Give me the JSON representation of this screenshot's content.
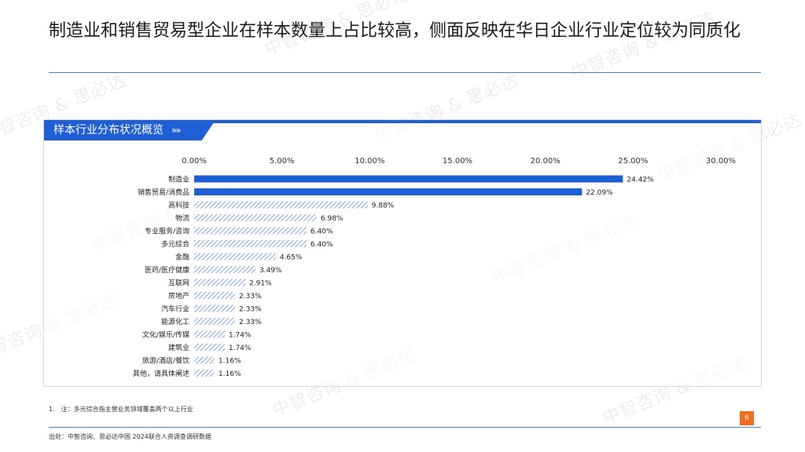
{
  "title": "制造业和销售贸易型企业在样本数量上占比较高，侧面反映在华日企业行业定位较为同质化",
  "panel": {
    "header_label": "样本行业分布状况概览",
    "header_chevrons": "»»"
  },
  "watermark_text": "中智咨询 & 思必达",
  "note": "1.　注：多元综合指主营业务领域覆盖两个以上行业",
  "page_number": "6",
  "source": "出处：中智咨询、思必达中国 2024联合人资调查调研数据",
  "colors": {
    "accent": "#1f5fd6",
    "hatch": "#7fa6e8",
    "page_badge": "#f26b21"
  },
  "chart_data": {
    "type": "bar",
    "orientation": "horizontal",
    "categories": [
      "制造业",
      "销售贸易/消费品",
      "高科技",
      "物流",
      "专业服务/咨询",
      "多元综合",
      "金融",
      "医药/医疗健康",
      "互联网",
      "房地产",
      "汽车行业",
      "能源化工",
      "文化/娱乐/传媒",
      "建筑业",
      "旅游/酒店/餐饮",
      "其他，请具体阐述"
    ],
    "values": [
      24.42,
      22.09,
      9.88,
      6.98,
      6.4,
      6.4,
      4.65,
      3.49,
      2.91,
      2.33,
      2.33,
      2.33,
      1.74,
      1.74,
      1.16,
      1.16
    ],
    "value_labels": [
      "24.42%",
      "22.09%",
      "9.88%",
      "6.98%",
      "6.40%",
      "6.40%",
      "4.65%",
      "3.49%",
      "2.91%",
      "2.33%",
      "2.33%",
      "2.33%",
      "1.74%",
      "1.74%",
      "1.16%",
      "1.16%"
    ],
    "styles": [
      "solid",
      "solid",
      "hatched",
      "hatched",
      "hatched",
      "hatched",
      "hatched",
      "hatched",
      "hatched",
      "hatched",
      "hatched",
      "hatched",
      "hatched",
      "hatched",
      "hatched",
      "hatched"
    ],
    "xlim": [
      0,
      30
    ],
    "ticks": [
      0,
      5,
      10,
      15,
      20,
      25,
      30
    ],
    "tick_labels": [
      "0.00%",
      "5.00%",
      "10.00%",
      "15.00%",
      "20.00%",
      "25.00%",
      "30.00%"
    ],
    "axis_position": "top",
    "grid": false,
    "title": "",
    "xlabel": "",
    "ylabel": ""
  }
}
